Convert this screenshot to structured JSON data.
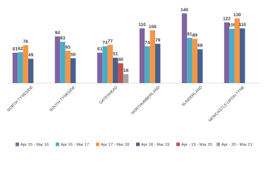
{
  "chart_data": {
    "type": "bar",
    "categories": [
      "NORTH TYNESIDE",
      "SOUTH TYNESIDE",
      "GATESHEAD",
      "NORTHUMBERLAND",
      "SUNDERLAND",
      "NEWCASTLE-UPON-TYNE"
    ],
    "series": [
      {
        "name": "Apr 15 - Mar 16",
        "color": "#8064a2",
        "values": [
          61,
          94,
          61,
          110,
          140,
          122
        ]
      },
      {
        "name": "Apr 16 - Mar 17",
        "color": "#4bacc6",
        "values": [
          62,
          83,
          74,
          74,
          91,
          109
        ]
      },
      {
        "name": "Apr 17 - Mar 18",
        "color": "#f79646",
        "values": [
          76,
          65,
          77,
          106,
          89,
          130
        ]
      },
      {
        "name": "Apr 18 - Mar 19",
        "color": "#48608f",
        "values": [
          49,
          50,
          51,
          79,
          68,
          110
        ]
      },
      {
        "name": "Apr - 19 - Mar 20",
        "color": "#c0504d",
        "values": [
          null,
          null,
          40,
          null,
          null,
          null
        ]
      },
      {
        "name": "Apr - 20 - Mar 21",
        "color": "#a5a5a5",
        "values": [
          null,
          null,
          18,
          null,
          null,
          null
        ]
      }
    ],
    "ylim": [
      0,
      150
    ]
  }
}
